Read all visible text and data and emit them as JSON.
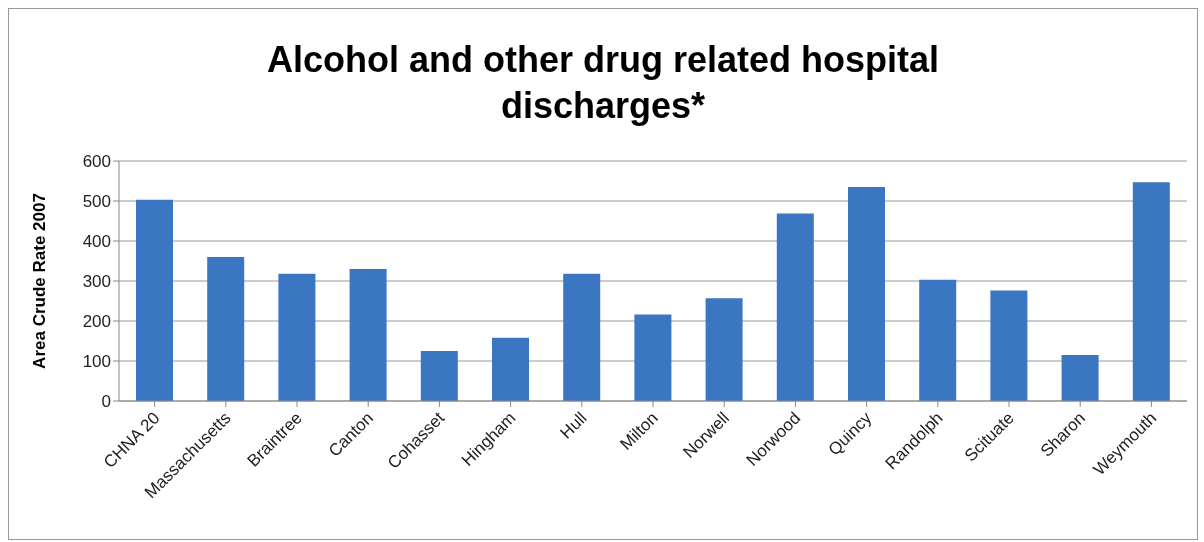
{
  "chart_data": {
    "type": "bar",
    "title": "Alcohol and other drug related hospital discharges*",
    "ylabel": "Area Crude Rate 2007",
    "categories": [
      "CHNA 20",
      "Massachusetts",
      "Braintree",
      "Canton",
      "Cohasset",
      "Hingham",
      "Hull",
      "Milton",
      "Norwell",
      "Norwood",
      "Quincy",
      "Randolph",
      "Scituate",
      "Sharon",
      "Weymouth"
    ],
    "values": [
      503,
      360,
      318,
      330,
      125,
      158,
      318,
      216,
      257,
      469,
      535,
      303,
      276,
      115,
      547
    ],
    "color": "#3a76c2",
    "ylim": [
      0,
      600
    ],
    "yticks": [
      0,
      100,
      200,
      300,
      400,
      500,
      600
    ],
    "grid": "y",
    "legend": false
  }
}
